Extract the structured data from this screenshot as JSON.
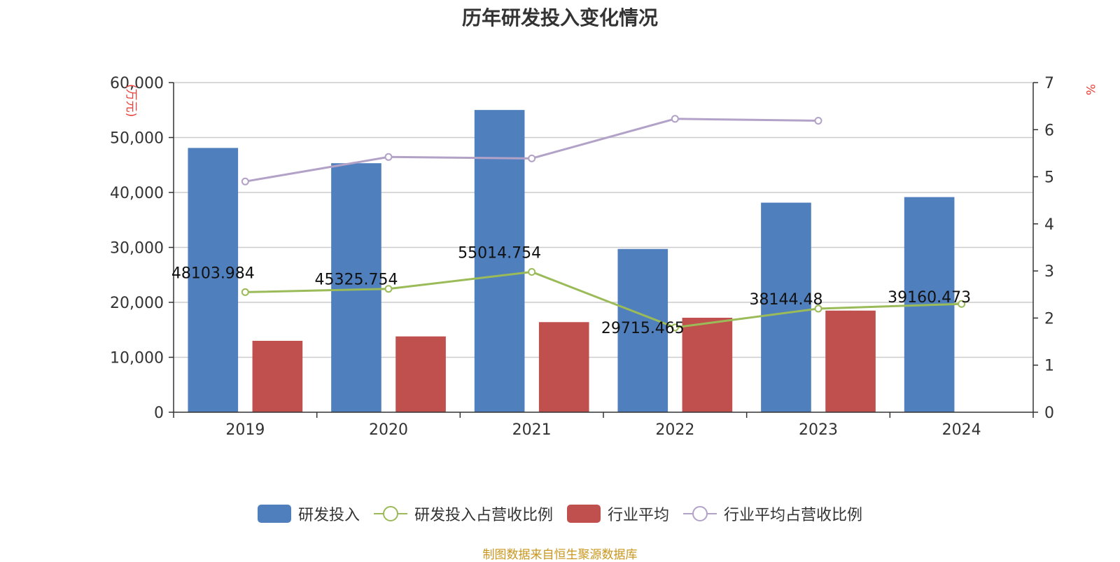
{
  "chart_data": {
    "type": "bar",
    "title": "历年研发投入变化情况",
    "categories": [
      "2019",
      "2020",
      "2021",
      "2022",
      "2023",
      "2024"
    ],
    "y_left": {
      "label": "(万元)",
      "ylim": [
        0,
        60000
      ],
      "ticks": [
        "0",
        "10,000",
        "20,000",
        "30,000",
        "40,000",
        "50,000",
        "60,000"
      ]
    },
    "y_right": {
      "label": "%",
      "ylim": [
        0,
        7
      ],
      "ticks": [
        "0",
        "1",
        "2",
        "3",
        "4",
        "5",
        "6",
        "7"
      ]
    },
    "grid": true,
    "legend_position": "bottom",
    "series": [
      {
        "name": "研发投入",
        "kind": "bar",
        "axis": "left",
        "color": "#4f7fbd",
        "values": [
          48103.984,
          45325.754,
          55014.754,
          29715.465,
          38144.48,
          39160.473
        ],
        "labels": [
          "48103.984",
          "45325.754",
          "55014.754",
          "29715.465",
          "38144.48",
          "39160.473"
        ]
      },
      {
        "name": "研发投入占营收比例",
        "kind": "line",
        "axis": "right",
        "color": "#9bbb59",
        "values": [
          2.55,
          2.62,
          2.98,
          1.8,
          2.2,
          2.3
        ]
      },
      {
        "name": "行业平均",
        "kind": "bar",
        "axis": "left",
        "color": "#c0504d",
        "values": [
          13000,
          13800,
          16400,
          17200,
          18500,
          null
        ]
      },
      {
        "name": "行业平均占营收比例",
        "kind": "line",
        "axis": "right",
        "color": "#b3a2c7",
        "values": [
          4.9,
          5.42,
          5.39,
          6.23,
          6.19,
          null
        ]
      }
    ]
  },
  "source": "制图数据来自恒生聚源数据库",
  "legend_icons": [
    "bar-swatch",
    "line-circle-swatch",
    "bar-swatch",
    "line-circle-swatch"
  ]
}
